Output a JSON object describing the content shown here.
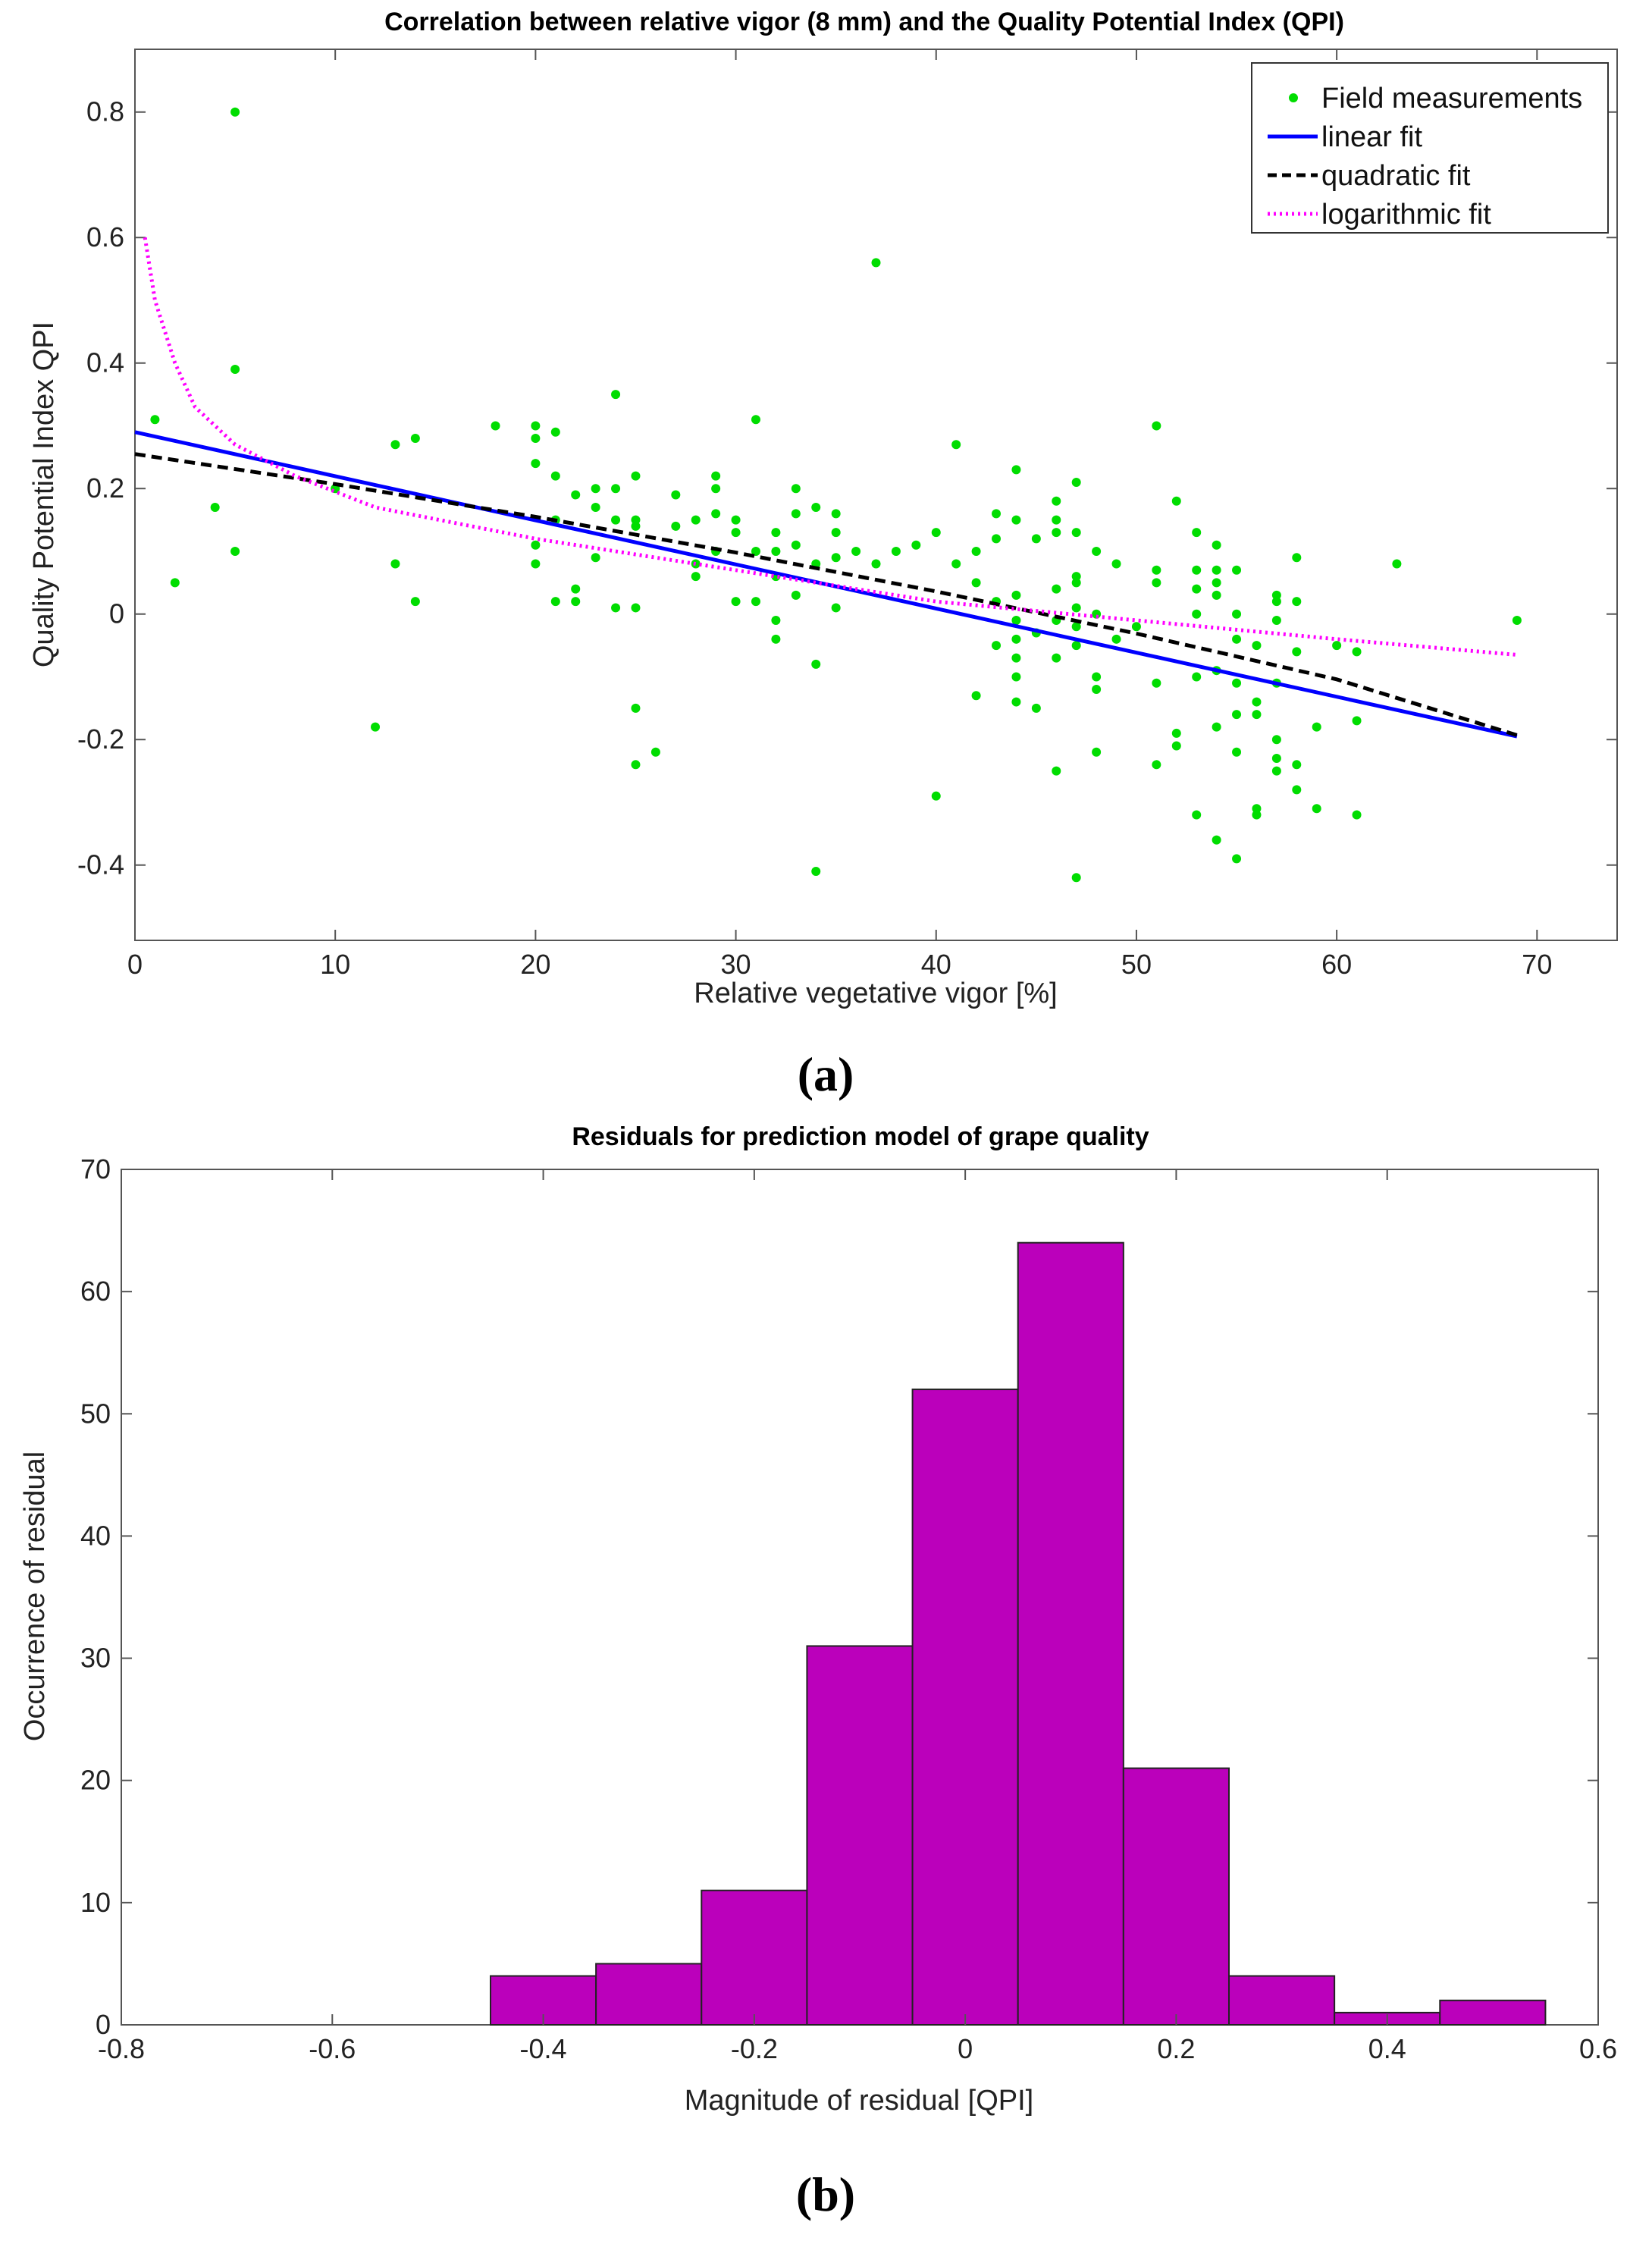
{
  "figure": {
    "panel_a_label": "(a)",
    "panel_b_label": "(b)"
  },
  "chart_data": [
    {
      "type": "scatter",
      "title": "Correlation between relative vigor (8 mm) and the Quality Potential Index (QPI)",
      "xlabel": "Relative vegetative vigor [%]",
      "ylabel": "Quality Potential Index QPI",
      "xlim": [
        0,
        74
      ],
      "ylim": [
        -0.52,
        0.9
      ],
      "xticks": [
        0,
        10,
        20,
        30,
        40,
        50,
        60,
        70
      ],
      "yticks": [
        -0.4,
        -0.2,
        0,
        0.2,
        0.4,
        0.6,
        0.8
      ],
      "xtick_labels": [
        "0",
        "10",
        "20",
        "30",
        "40",
        "50",
        "60",
        "70"
      ],
      "ytick_labels": [
        "-0.4",
        "-0.2",
        "0",
        "0.2",
        "0.4",
        "0.6",
        "0.8"
      ],
      "legend_position": "top-right",
      "legend": [
        "Field measurements",
        "linear fit",
        "quadratic fit",
        "logarithmic fit"
      ],
      "series": [
        {
          "name": "Field measurements",
          "kind": "points",
          "color": "#00dd00",
          "points": [
            [
              1,
              0.31
            ],
            [
              2,
              0.05
            ],
            [
              4,
              0.17
            ],
            [
              5,
              0.8
            ],
            [
              5,
              0.39
            ],
            [
              5,
              0.1
            ],
            [
              10,
              0.2
            ],
            [
              12,
              -0.18
            ],
            [
              13,
              0.27
            ],
            [
              13,
              0.08
            ],
            [
              14,
              0.28
            ],
            [
              14,
              0.02
            ],
            [
              18,
              0.3
            ],
            [
              20,
              0.3
            ],
            [
              20,
              0.28
            ],
            [
              20,
              0.24
            ],
            [
              20,
              0.11
            ],
            [
              20,
              0.08
            ],
            [
              21,
              0.29
            ],
            [
              21,
              0.22
            ],
            [
              21,
              0.15
            ],
            [
              21,
              0.02
            ],
            [
              22,
              0.19
            ],
            [
              22,
              0.04
            ],
            [
              22,
              0.02
            ],
            [
              23,
              0.2
            ],
            [
              23,
              0.17
            ],
            [
              23,
              0.09
            ],
            [
              24,
              0.35
            ],
            [
              24,
              0.2
            ],
            [
              24,
              0.15
            ],
            [
              24,
              0.01
            ],
            [
              25,
              0.22
            ],
            [
              25,
              0.15
            ],
            [
              25,
              0.14
            ],
            [
              25,
              0.01
            ],
            [
              25,
              -0.15
            ],
            [
              25,
              -0.24
            ],
            [
              26,
              -0.22
            ],
            [
              27,
              0.19
            ],
            [
              27,
              0.14
            ],
            [
              28,
              0.15
            ],
            [
              28,
              0.08
            ],
            [
              28,
              0.06
            ],
            [
              29,
              0.22
            ],
            [
              29,
              0.2
            ],
            [
              29,
              0.16
            ],
            [
              29,
              0.1
            ],
            [
              30,
              0.15
            ],
            [
              30,
              0.13
            ],
            [
              30,
              0.02
            ],
            [
              31,
              0.31
            ],
            [
              31,
              0.1
            ],
            [
              31,
              0.02
            ],
            [
              32,
              0.13
            ],
            [
              32,
              0.1
            ],
            [
              32,
              0.06
            ],
            [
              32,
              -0.01
            ],
            [
              32,
              -0.04
            ],
            [
              33,
              0.2
            ],
            [
              33,
              0.16
            ],
            [
              33,
              0.11
            ],
            [
              33,
              0.03
            ],
            [
              34,
              0.17
            ],
            [
              34,
              0.08
            ],
            [
              34,
              -0.08
            ],
            [
              34,
              -0.41
            ],
            [
              35,
              0.16
            ],
            [
              35,
              0.13
            ],
            [
              35,
              0.09
            ],
            [
              35,
              0.01
            ],
            [
              36,
              0.1
            ],
            [
              37,
              0.56
            ],
            [
              37,
              0.08
            ],
            [
              38,
              0.1
            ],
            [
              39,
              0.11
            ],
            [
              40,
              0.13
            ],
            [
              40,
              -0.29
            ],
            [
              41,
              0.27
            ],
            [
              41,
              0.08
            ],
            [
              42,
              0.1
            ],
            [
              42,
              0.05
            ],
            [
              42,
              -0.13
            ],
            [
              43,
              0.16
            ],
            [
              43,
              0.12
            ],
            [
              43,
              0.02
            ],
            [
              43,
              -0.05
            ],
            [
              44,
              0.23
            ],
            [
              44,
              0.15
            ],
            [
              44,
              0.03
            ],
            [
              44,
              -0.01
            ],
            [
              44,
              -0.04
            ],
            [
              44,
              -0.07
            ],
            [
              44,
              -0.1
            ],
            [
              44,
              -0.14
            ],
            [
              45,
              0.12
            ],
            [
              45,
              -0.03
            ],
            [
              45,
              -0.15
            ],
            [
              46,
              0.18
            ],
            [
              46,
              0.15
            ],
            [
              46,
              0.13
            ],
            [
              46,
              0.04
            ],
            [
              46,
              -0.01
            ],
            [
              46,
              -0.07
            ],
            [
              46,
              -0.25
            ],
            [
              47,
              0.21
            ],
            [
              47,
              0.13
            ],
            [
              47,
              0.06
            ],
            [
              47,
              0.05
            ],
            [
              47,
              0.01
            ],
            [
              47,
              -0.02
            ],
            [
              47,
              -0.05
            ],
            [
              47,
              -0.42
            ],
            [
              48,
              0.1
            ],
            [
              48,
              0.0
            ],
            [
              48,
              -0.1
            ],
            [
              48,
              -0.12
            ],
            [
              48,
              -0.22
            ],
            [
              49,
              0.08
            ],
            [
              49,
              -0.04
            ],
            [
              50,
              -0.02
            ],
            [
              51,
              0.3
            ],
            [
              51,
              0.07
            ],
            [
              51,
              0.05
            ],
            [
              51,
              -0.11
            ],
            [
              51,
              -0.24
            ],
            [
              52,
              0.18
            ],
            [
              52,
              -0.19
            ],
            [
              52,
              -0.21
            ],
            [
              53,
              0.13
            ],
            [
              53,
              0.07
            ],
            [
              53,
              0.04
            ],
            [
              53,
              0.0
            ],
            [
              53,
              -0.1
            ],
            [
              53,
              -0.32
            ],
            [
              54,
              0.11
            ],
            [
              54,
              0.07
            ],
            [
              54,
              0.05
            ],
            [
              54,
              0.03
            ],
            [
              54,
              -0.09
            ],
            [
              54,
              -0.18
            ],
            [
              54,
              -0.36
            ],
            [
              55,
              0.07
            ],
            [
              55,
              0.0
            ],
            [
              55,
              -0.04
            ],
            [
              55,
              -0.11
            ],
            [
              55,
              -0.16
            ],
            [
              55,
              -0.22
            ],
            [
              55,
              -0.39
            ],
            [
              56,
              -0.05
            ],
            [
              56,
              -0.14
            ],
            [
              56,
              -0.16
            ],
            [
              56,
              -0.31
            ],
            [
              56,
              -0.32
            ],
            [
              57,
              0.03
            ],
            [
              57,
              0.02
            ],
            [
              57,
              -0.01
            ],
            [
              57,
              -0.11
            ],
            [
              57,
              -0.2
            ],
            [
              57,
              -0.23
            ],
            [
              57,
              -0.25
            ],
            [
              58,
              0.09
            ],
            [
              58,
              0.02
            ],
            [
              58,
              -0.06
            ],
            [
              58,
              -0.24
            ],
            [
              58,
              -0.28
            ],
            [
              59,
              -0.18
            ],
            [
              59,
              -0.31
            ],
            [
              60,
              -0.05
            ],
            [
              61,
              -0.06
            ],
            [
              61,
              -0.17
            ],
            [
              61,
              -0.32
            ],
            [
              63,
              0.08
            ],
            [
              69,
              -0.01
            ]
          ]
        },
        {
          "name": "linear fit",
          "kind": "line",
          "color": "#0000ff",
          "style": "solid",
          "x": [
            0,
            69
          ],
          "y": [
            0.29,
            -0.195
          ]
        },
        {
          "name": "quadratic fit",
          "kind": "line",
          "color": "#000000",
          "style": "dashed",
          "x": [
            0,
            10,
            20,
            30,
            40,
            50,
            60,
            69
          ],
          "y": [
            0.255,
            0.207,
            0.155,
            0.098,
            0.036,
            -0.031,
            -0.104,
            -0.193
          ]
        },
        {
          "name": "logarithmic fit",
          "kind": "line",
          "color": "#ff00ff",
          "style": "dotted",
          "x": [
            0.5,
            1,
            2,
            3,
            5,
            8,
            12,
            20,
            30,
            40,
            50,
            60,
            69
          ],
          "y": [
            0.6,
            0.5,
            0.4,
            0.33,
            0.27,
            0.22,
            0.17,
            0.12,
            0.07,
            0.02,
            -0.01,
            -0.04,
            -0.065
          ]
        }
      ]
    },
    {
      "type": "bar",
      "title": "Residuals for prediction model of grape quality",
      "xlabel": "Magnitude of residual [QPI]",
      "ylabel": "Occurrence of residual",
      "xlim": [
        -0.8,
        0.6
      ],
      "ylim": [
        0,
        70
      ],
      "xticks": [
        -0.8,
        -0.6,
        -0.4,
        -0.2,
        0,
        0.2,
        0.4,
        0.6
      ],
      "yticks": [
        0,
        10,
        20,
        30,
        40,
        50,
        60,
        70
      ],
      "xtick_labels": [
        "-0.8",
        "-0.6",
        "-0.4",
        "-0.2",
        "0",
        "0.2",
        "0.4",
        "0.6"
      ],
      "ytick_labels": [
        "0",
        "10",
        "20",
        "30",
        "40",
        "50",
        "60",
        "70"
      ],
      "bar_color": "#bb00bb",
      "bin_edges": [
        -0.45,
        -0.35,
        -0.25,
        -0.15,
        -0.05,
        0.05,
        0.15,
        0.25,
        0.35,
        0.45,
        0.55
      ],
      "values": [
        4,
        5,
        11,
        31,
        52,
        64,
        21,
        4,
        1,
        2
      ]
    }
  ]
}
